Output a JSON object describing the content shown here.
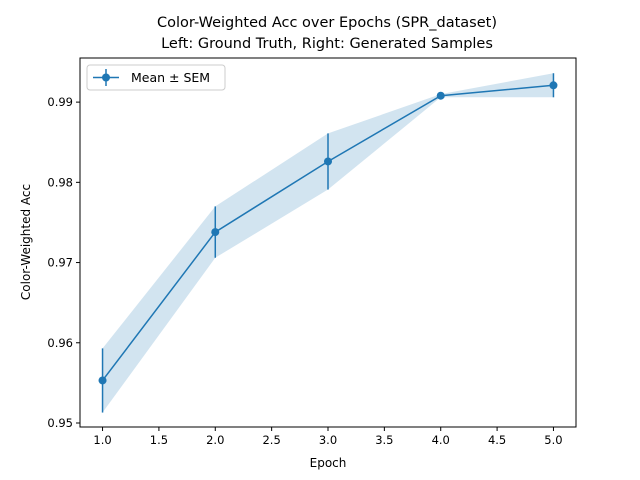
{
  "chart_data": {
    "type": "line",
    "title": "Color-Weighted Acc over Epochs (SPR_dataset)",
    "subtitle": "Left: Ground Truth, Right: Generated Samples",
    "xlabel": "Epoch",
    "ylabel": "Color-Weighted Acc",
    "xlim": [
      0.8,
      5.2
    ],
    "ylim": [
      0.9495,
      0.9955
    ],
    "xticks": [
      "1.0",
      "1.5",
      "2.0",
      "2.5",
      "3.0",
      "3.5",
      "4.0",
      "4.5",
      "5.0"
    ],
    "yticks": [
      "0.95",
      "0.96",
      "0.97",
      "0.98",
      "0.99"
    ],
    "grid": false,
    "legend": {
      "position": "top-left",
      "entries": [
        "Mean ± SEM"
      ]
    },
    "series": [
      {
        "name": "Mean ± SEM",
        "color": "#1f77b4",
        "band_color": "#1f77b4",
        "x": [
          1,
          2,
          3,
          4,
          5
        ],
        "y": [
          0.9553,
          0.9738,
          0.9826,
          0.9908,
          0.9921
        ],
        "sem": [
          0.004,
          0.0032,
          0.0035,
          0.0002,
          0.0015
        ]
      }
    ]
  }
}
